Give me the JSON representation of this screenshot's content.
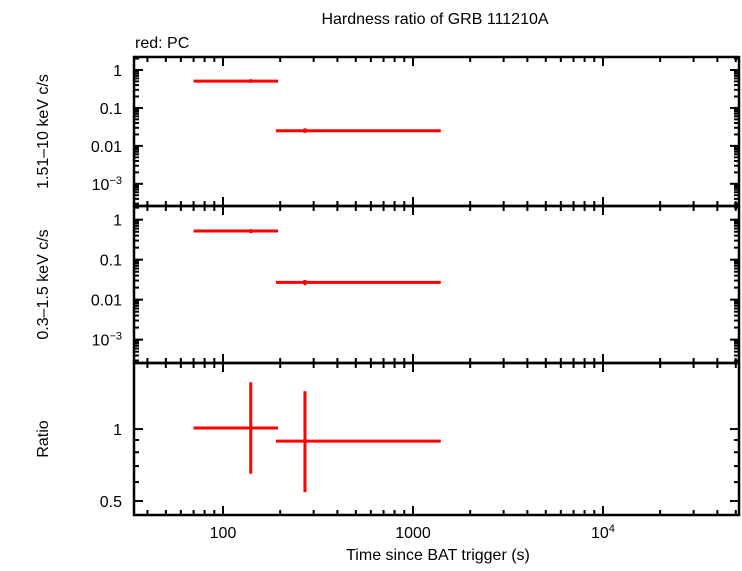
{
  "chart_data": {
    "type": "scatter",
    "title": "Hardness ratio of GRB 111210A",
    "legend_note": "red: PC",
    "xlabel": "Time since BAT trigger (s)",
    "xscale": "log",
    "xlim": [
      34,
      52000
    ],
    "xticks": [
      {
        "value": 100,
        "label": "100"
      },
      {
        "value": 1000,
        "label": "1000"
      },
      {
        "value": 10000,
        "label": "10",
        "sup": "4"
      }
    ],
    "series_color": "#ff0000",
    "panels": [
      {
        "ylabel": "1.51–10 keV c/s",
        "yscale": "log",
        "ylim": [
          0.00026,
          2.2
        ],
        "yticks": [
          {
            "value": 1,
            "label": "1"
          },
          {
            "value": 0.1,
            "label": "0.1"
          },
          {
            "value": 0.01,
            "label": "0.01"
          },
          {
            "value": 0.001,
            "label": "10",
            "sup": "−3"
          }
        ],
        "points": [
          {
            "x": 140,
            "xlo": 70,
            "xhi": 195,
            "y": 0.51,
            "ylo": 0.46,
            "yhi": 0.57
          },
          {
            "x": 270,
            "xlo": 190,
            "xhi": 1400,
            "y": 0.025,
            "ylo": 0.022,
            "yhi": 0.029
          }
        ]
      },
      {
        "ylabel": "0.3–1.5 keV c/s",
        "yscale": "log",
        "ylim": [
          0.00026,
          2.2
        ],
        "yticks": [
          {
            "value": 1,
            "label": "1"
          },
          {
            "value": 0.1,
            "label": "0.1"
          },
          {
            "value": 0.01,
            "label": "0.01"
          },
          {
            "value": 0.001,
            "label": "10",
            "sup": "−3"
          }
        ],
        "points": [
          {
            "x": 140,
            "xlo": 70,
            "xhi": 195,
            "y": 0.52,
            "ylo": 0.46,
            "yhi": 0.58
          },
          {
            "x": 270,
            "xlo": 190,
            "xhi": 1400,
            "y": 0.027,
            "ylo": 0.023,
            "yhi": 0.031
          }
        ]
      },
      {
        "ylabel": "Ratio",
        "yscale": "log",
        "ylim": [
          0.437,
          1.89
        ],
        "yticks": [
          {
            "value": 1,
            "label": "1"
          },
          {
            "value": 0.5,
            "label": "0.5"
          }
        ],
        "points": [
          {
            "x": 140,
            "xlo": 70,
            "xhi": 195,
            "y": 1.01,
            "ylo": 0.65,
            "yhi": 1.57
          },
          {
            "x": 270,
            "xlo": 190,
            "xhi": 1400,
            "y": 0.89,
            "ylo": 0.545,
            "yhi": 1.44
          }
        ]
      }
    ]
  }
}
